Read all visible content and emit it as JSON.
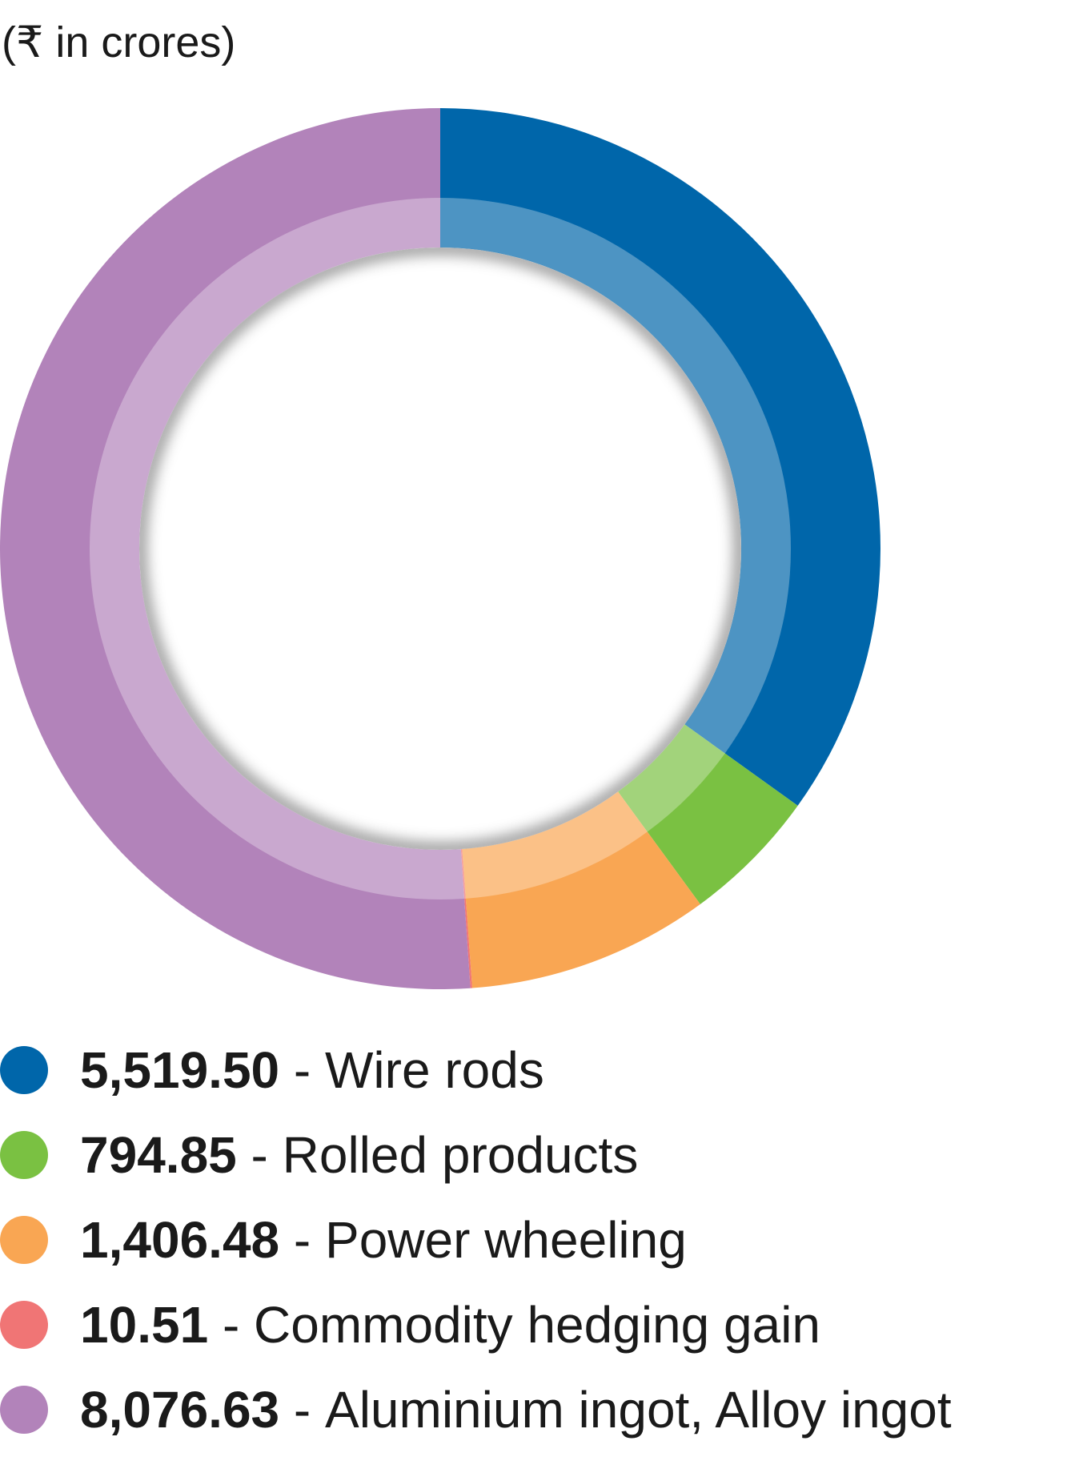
{
  "unit_note": "(₹ in crores)",
  "separator": " - ",
  "chart_data": {
    "type": "pie",
    "donut": true,
    "start": "top, clockwise",
    "legend_position": "bottom",
    "slices": [
      {
        "label": "Wire rods",
        "value": 5519.5,
        "value_text": "5,519.50",
        "color": "#0066AA"
      },
      {
        "label": "Rolled products",
        "value": 794.85,
        "value_text": "794.85",
        "color": "#7AC142"
      },
      {
        "label": "Power wheeling",
        "value": 1406.48,
        "value_text": "1,406.48",
        "color": "#F9A653"
      },
      {
        "label": "Commodity hedging gain",
        "value": 10.51,
        "value_text": "10.51",
        "color": "#F07575"
      },
      {
        "label": "Aluminium ingot, Alloy ingot",
        "value": 8076.63,
        "value_text": "8,076.63",
        "color": "#B283BA"
      }
    ]
  }
}
